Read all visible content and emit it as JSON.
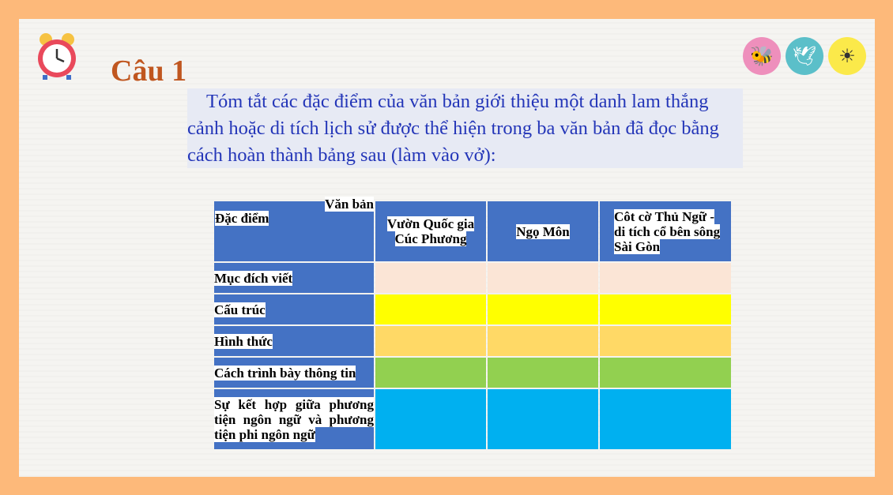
{
  "title": "Câu 1",
  "intro": "Tóm tắt các đặc điểm của văn bản giới thiệu một danh lam thắng cảnh hoặc di tích lịch sử được thể hiện trong ba văn bản đã đọc bằng cách hoàn thành bảng sau (làm vào vở):",
  "icons": [
    "alarm-clock-icon",
    "bee-icon",
    "dove-icon",
    "sun-icon"
  ],
  "table": {
    "corner_top": "Văn bản",
    "corner_left": "Đặc điểm",
    "columns": [
      "Vườn Quốc gia Cúc Phương",
      "Ngọ Môn",
      "Côt cờ Thủ Ngữ - di tích cổ bên sông Sài Gòn"
    ],
    "rows": [
      {
        "label": "Mục đích viết",
        "color": "#fbe5d6"
      },
      {
        "label": "Cấu trúc",
        "color": "#ffff00"
      },
      {
        "label": "Hình thức",
        "color": "#ffd966"
      },
      {
        "label": "Cách trình bày thông tin",
        "color": "#92d050"
      },
      {
        "label": "Sự kết hợp giữa phương tiện ngôn ngữ và phương tiện phi ngôn ngữ",
        "color": "#00b0f0"
      }
    ],
    "header_color": "#4472c4"
  }
}
